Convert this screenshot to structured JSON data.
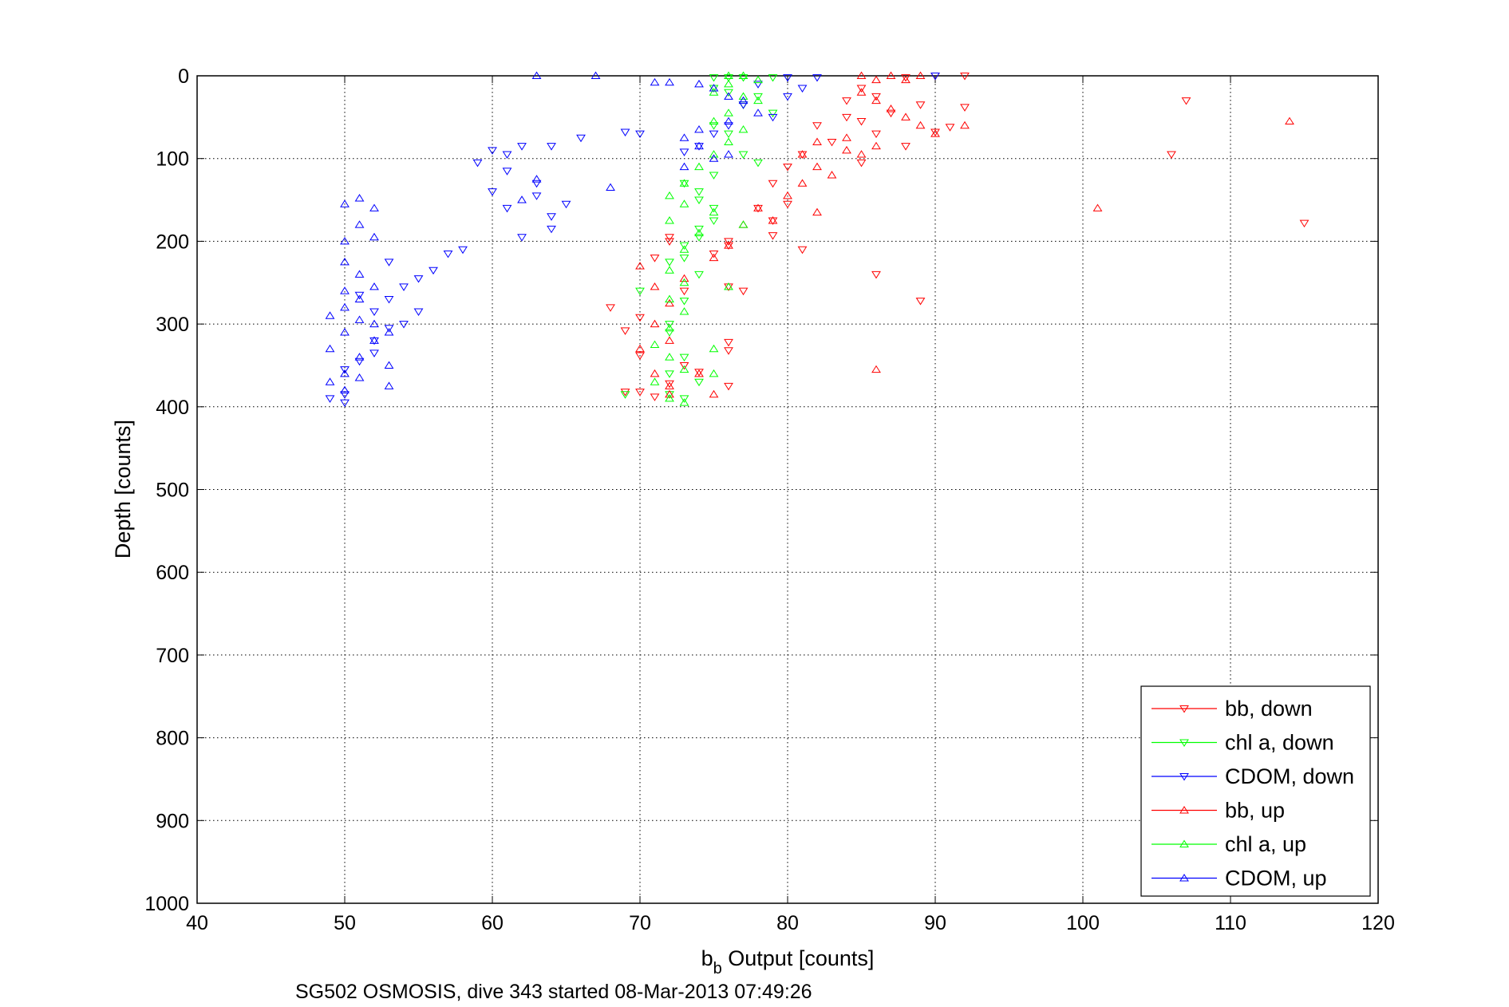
{
  "chart_data": {
    "type": "scatter",
    "title": "",
    "xlabel_main": "b",
    "xlabel_sub": "b",
    "xlabel_rest": " Output [counts]",
    "ylabel": "Depth [counts]",
    "xlim": [
      40,
      120
    ],
    "ylim": [
      0,
      1000
    ],
    "y_reversed": true,
    "grid": true,
    "xticks": [
      40,
      50,
      60,
      70,
      80,
      90,
      100,
      110,
      120
    ],
    "yticks": [
      0,
      100,
      200,
      300,
      400,
      500,
      600,
      700,
      800,
      900,
      1000
    ],
    "legend_position": "bottom-right",
    "footer": "SG502 OSMOSIS, dive 343 started 08-Mar-2013 07:49:26",
    "series": [
      {
        "name": "bb, down",
        "color": "#ff0000",
        "marker": "triangle-down",
        "points": [
          [
            92,
            0
          ],
          [
            90,
            0
          ],
          [
            88,
            2
          ],
          [
            86,
            25
          ],
          [
            85,
            15
          ],
          [
            84,
            30
          ],
          [
            89,
            35
          ],
          [
            92,
            38
          ],
          [
            87,
            45
          ],
          [
            85,
            55
          ],
          [
            91,
            62
          ],
          [
            84,
            50
          ],
          [
            82,
            60
          ],
          [
            86,
            70
          ],
          [
            90,
            68
          ],
          [
            83,
            80
          ],
          [
            88,
            85
          ],
          [
            81,
            95
          ],
          [
            80,
            110
          ],
          [
            85,
            105
          ],
          [
            79,
            130
          ],
          [
            78,
            160
          ],
          [
            79,
            175
          ],
          [
            80,
            155
          ],
          [
            79,
            193
          ],
          [
            81,
            210
          ],
          [
            76,
            200
          ],
          [
            76,
            205
          ],
          [
            75,
            215
          ],
          [
            76,
            255
          ],
          [
            77,
            260
          ],
          [
            86,
            240
          ],
          [
            89,
            272
          ],
          [
            70,
            292
          ],
          [
            69,
            308
          ],
          [
            70,
            338
          ],
          [
            70,
            382
          ],
          [
            73,
            350
          ],
          [
            72,
            372
          ],
          [
            74,
            358
          ],
          [
            76,
            322
          ],
          [
            76,
            332
          ],
          [
            76,
            375
          ],
          [
            71,
            388
          ],
          [
            69,
            382
          ],
          [
            71,
            220
          ],
          [
            72,
            195
          ],
          [
            68,
            280
          ],
          [
            72,
            200
          ],
          [
            73,
            260
          ],
          [
            106,
            95
          ],
          [
            115,
            178
          ],
          [
            107,
            30
          ]
        ]
      },
      {
        "name": "chl a, down",
        "color": "#00ff00",
        "marker": "triangle-down",
        "points": [
          [
            75,
            2
          ],
          [
            76,
            2
          ],
          [
            77,
            2
          ],
          [
            79,
            2
          ],
          [
            75,
            15
          ],
          [
            76,
            20
          ],
          [
            78,
            25
          ],
          [
            77,
            35
          ],
          [
            79,
            45
          ],
          [
            75,
            60
          ],
          [
            76,
            70
          ],
          [
            77,
            95
          ],
          [
            78,
            105
          ],
          [
            75,
            120
          ],
          [
            74,
            140
          ],
          [
            75,
            175
          ],
          [
            74,
            195
          ],
          [
            73,
            220
          ],
          [
            74,
            240
          ],
          [
            73,
            272
          ],
          [
            72,
            300
          ],
          [
            72,
            310
          ],
          [
            73,
            340
          ],
          [
            72,
            360
          ],
          [
            74,
            370
          ],
          [
            73,
            390
          ],
          [
            72,
            385
          ],
          [
            69,
            385
          ],
          [
            70,
            260
          ],
          [
            72,
            225
          ],
          [
            73,
            205
          ],
          [
            74,
            185
          ],
          [
            75,
            160
          ],
          [
            74,
            150
          ],
          [
            73,
            130
          ]
        ]
      },
      {
        "name": "CDOM, down",
        "color": "#0000ff",
        "marker": "triangle-down",
        "points": [
          [
            90,
            0
          ],
          [
            82,
            2
          ],
          [
            80,
            2
          ],
          [
            78,
            10
          ],
          [
            81,
            15
          ],
          [
            80,
            25
          ],
          [
            77,
            35
          ],
          [
            79,
            50
          ],
          [
            76,
            60
          ],
          [
            75,
            70
          ],
          [
            74,
            85
          ],
          [
            73,
            92
          ],
          [
            70,
            70
          ],
          [
            69,
            68
          ],
          [
            66,
            75
          ],
          [
            64,
            85
          ],
          [
            62,
            85
          ],
          [
            61,
            95
          ],
          [
            60,
            90
          ],
          [
            61,
            115
          ],
          [
            63,
            130
          ],
          [
            61,
            160
          ],
          [
            62,
            195
          ],
          [
            64,
            170
          ],
          [
            65,
            155
          ],
          [
            64,
            185
          ],
          [
            63,
            145
          ],
          [
            60,
            140
          ],
          [
            59,
            105
          ],
          [
            58,
            210
          ],
          [
            57,
            215
          ],
          [
            56,
            235
          ],
          [
            55,
            245
          ],
          [
            54,
            255
          ],
          [
            53,
            225
          ],
          [
            53,
            270
          ],
          [
            52,
            285
          ],
          [
            52,
            320
          ],
          [
            52,
            335
          ],
          [
            51,
            345
          ],
          [
            50,
            355
          ],
          [
            50,
            395
          ],
          [
            49,
            390
          ],
          [
            50,
            385
          ],
          [
            51,
            265
          ],
          [
            53,
            305
          ],
          [
            54,
            300
          ],
          [
            55,
            285
          ]
        ]
      },
      {
        "name": "bb, up",
        "color": "#ff0000",
        "marker": "triangle-up",
        "points": [
          [
            85,
            0
          ],
          [
            86,
            5
          ],
          [
            87,
            0
          ],
          [
            88,
            5
          ],
          [
            89,
            0
          ],
          [
            85,
            20
          ],
          [
            86,
            30
          ],
          [
            87,
            40
          ],
          [
            88,
            50
          ],
          [
            89,
            60
          ],
          [
            90,
            70
          ],
          [
            92,
            60
          ],
          [
            84,
            75
          ],
          [
            86,
            85
          ],
          [
            85,
            95
          ],
          [
            84,
            90
          ],
          [
            82,
            80
          ],
          [
            81,
            95
          ],
          [
            82,
            110
          ],
          [
            83,
            120
          ],
          [
            81,
            130
          ],
          [
            80,
            145
          ],
          [
            78,
            160
          ],
          [
            79,
            175
          ],
          [
            77,
            180
          ],
          [
            82,
            165
          ],
          [
            76,
            205
          ],
          [
            75,
            220
          ],
          [
            73,
            245
          ],
          [
            71,
            255
          ],
          [
            70,
            230
          ],
          [
            72,
            275
          ],
          [
            71,
            300
          ],
          [
            72,
            320
          ],
          [
            70,
            330
          ],
          [
            71,
            360
          ],
          [
            72,
            375
          ],
          [
            74,
            360
          ],
          [
            75,
            385
          ],
          [
            72,
            385
          ],
          [
            101,
            160
          ],
          [
            114,
            55
          ],
          [
            86,
            355
          ]
        ]
      },
      {
        "name": "chl a, up",
        "color": "#00ff00",
        "marker": "triangle-up",
        "points": [
          [
            76,
            0
          ],
          [
            77,
            0
          ],
          [
            78,
            5
          ],
          [
            76,
            10
          ],
          [
            75,
            20
          ],
          [
            77,
            25
          ],
          [
            78,
            30
          ],
          [
            76,
            45
          ],
          [
            75,
            55
          ],
          [
            77,
            65
          ],
          [
            76,
            80
          ],
          [
            75,
            95
          ],
          [
            74,
            110
          ],
          [
            73,
            130
          ],
          [
            72,
            145
          ],
          [
            73,
            155
          ],
          [
            72,
            175
          ],
          [
            74,
            190
          ],
          [
            73,
            210
          ],
          [
            72,
            235
          ],
          [
            73,
            250
          ],
          [
            72,
            270
          ],
          [
            73,
            285
          ],
          [
            72,
            305
          ],
          [
            71,
            325
          ],
          [
            72,
            340
          ],
          [
            73,
            355
          ],
          [
            71,
            370
          ],
          [
            72,
            390
          ],
          [
            73,
            395
          ],
          [
            75,
            330
          ],
          [
            75,
            360
          ],
          [
            77,
            180
          ],
          [
            75,
            165
          ],
          [
            76,
            255
          ]
        ]
      },
      {
        "name": "CDOM, up",
        "color": "#0000ff",
        "marker": "triangle-up",
        "points": [
          [
            63,
            0
          ],
          [
            67,
            0
          ],
          [
            71,
            8
          ],
          [
            72,
            8
          ],
          [
            74,
            10
          ],
          [
            75,
            15
          ],
          [
            76,
            25
          ],
          [
            77,
            30
          ],
          [
            78,
            45
          ],
          [
            76,
            55
          ],
          [
            74,
            65
          ],
          [
            73,
            75
          ],
          [
            74,
            85
          ],
          [
            76,
            95
          ],
          [
            75,
            100
          ],
          [
            73,
            110
          ],
          [
            68,
            135
          ],
          [
            63,
            125
          ],
          [
            62,
            150
          ],
          [
            52,
            160
          ],
          [
            51,
            148
          ],
          [
            50,
            155
          ],
          [
            51,
            180
          ],
          [
            50,
            200
          ],
          [
            52,
            195
          ],
          [
            50,
            225
          ],
          [
            51,
            240
          ],
          [
            50,
            260
          ],
          [
            51,
            270
          ],
          [
            52,
            255
          ],
          [
            50,
            280
          ],
          [
            51,
            295
          ],
          [
            50,
            310
          ],
          [
            52,
            320
          ],
          [
            51,
            340
          ],
          [
            53,
            350
          ],
          [
            50,
            360
          ],
          [
            51,
            365
          ],
          [
            49,
            370
          ],
          [
            53,
            375
          ],
          [
            50,
            380
          ],
          [
            49,
            290
          ],
          [
            49,
            330
          ],
          [
            53,
            310
          ],
          [
            52,
            300
          ]
        ]
      }
    ]
  }
}
